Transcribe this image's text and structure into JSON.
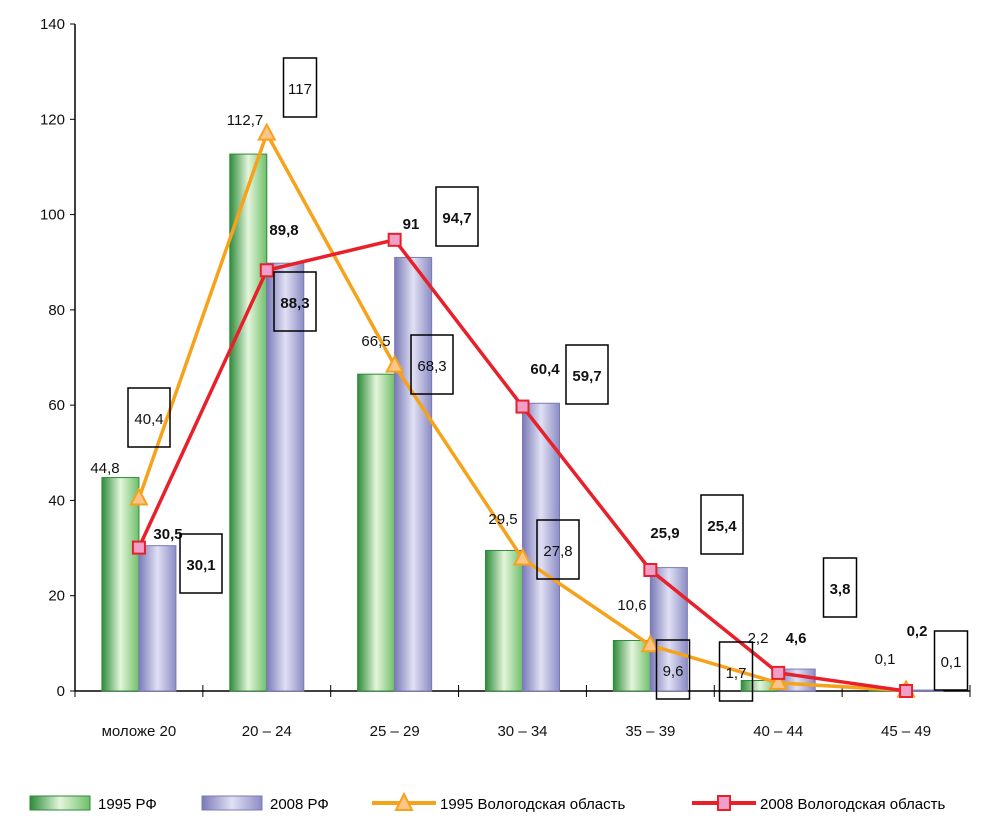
{
  "chart_data": {
    "type": "bar",
    "categories": [
      "моложе 20",
      "20 – 24",
      "25 – 29",
      "30 – 34",
      "35 – 39",
      "40 – 44",
      "45 – 49"
    ],
    "ylim": [
      0,
      140
    ],
    "yticks": [
      0,
      20,
      40,
      60,
      80,
      100,
      120,
      140
    ],
    "grid": false,
    "legend_position": "bottom",
    "series": [
      {
        "name": "1995 РФ",
        "kind": "bar",
        "color": "#2e8b3a",
        "values": [
          44.8,
          112.7,
          66.5,
          29.5,
          10.6,
          2.2,
          0.1
        ],
        "labels": [
          "44,8",
          "112,7",
          "66,5",
          "29,5",
          "10,6",
          "2,2",
          "0,1"
        ]
      },
      {
        "name": "2008 РФ",
        "kind": "bar",
        "color": "#7a7ab8",
        "values": [
          30.5,
          89.8,
          91,
          60.4,
          25.9,
          4.6,
          0.2
        ],
        "labels": [
          "30,5",
          "89,8",
          "91",
          "60,4",
          "25,9",
          "4,6",
          "0,2"
        ]
      },
      {
        "name": "1995 Вологодская область",
        "kind": "line",
        "marker": "triangle",
        "color": "#f7a21b",
        "values": [
          40.4,
          117,
          68.3,
          27.8,
          9.6,
          1.7,
          0.1
        ],
        "labels": [
          "40,4",
          "117",
          "68,3",
          "27,8",
          "9,6",
          "1,7",
          "0,1"
        ]
      },
      {
        "name": "2008 Вологодская область",
        "kind": "line",
        "marker": "square",
        "color": "#e8202a",
        "values": [
          30.1,
          88.3,
          94.7,
          59.7,
          25.4,
          3.8,
          0
        ],
        "labels": [
          "30,1",
          "88,3",
          "94,7",
          "59,7",
          "25,4",
          "3,8",
          null
        ]
      }
    ]
  }
}
